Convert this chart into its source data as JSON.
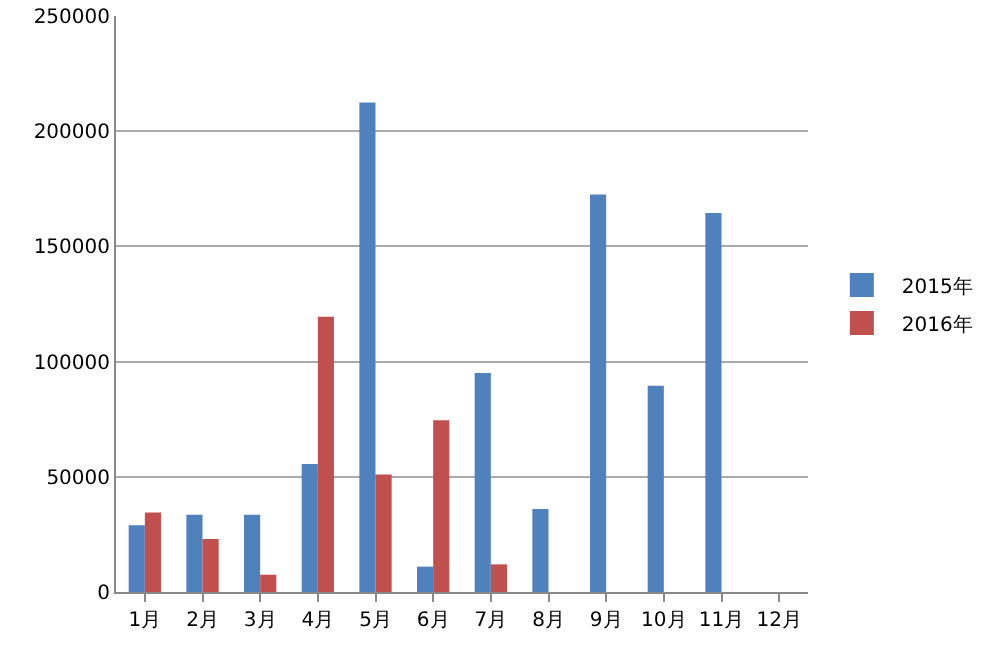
{
  "chart_data": {
    "type": "bar",
    "categories": [
      "1月",
      "2月",
      "3月",
      "4月",
      "5月",
      "6月",
      "7月",
      "8月",
      "9月",
      "10月",
      "11月",
      "12月"
    ],
    "series": [
      {
        "name": "2015年",
        "color": "#4f81bd",
        "values": [
          29000,
          33500,
          33500,
          55500,
          212500,
          11000,
          95000,
          36000,
          172500,
          89500,
          164500,
          null
        ]
      },
      {
        "name": "2016年",
        "color": "#c0504d",
        "values": [
          34500,
          23000,
          7500,
          119500,
          51000,
          74500,
          12000,
          null,
          null,
          null,
          null,
          null
        ]
      }
    ],
    "ylim": [
      0,
      250000
    ],
    "yticks": [
      0,
      50000,
      100000,
      150000,
      200000,
      250000
    ],
    "grid": "y",
    "legend": "right"
  }
}
